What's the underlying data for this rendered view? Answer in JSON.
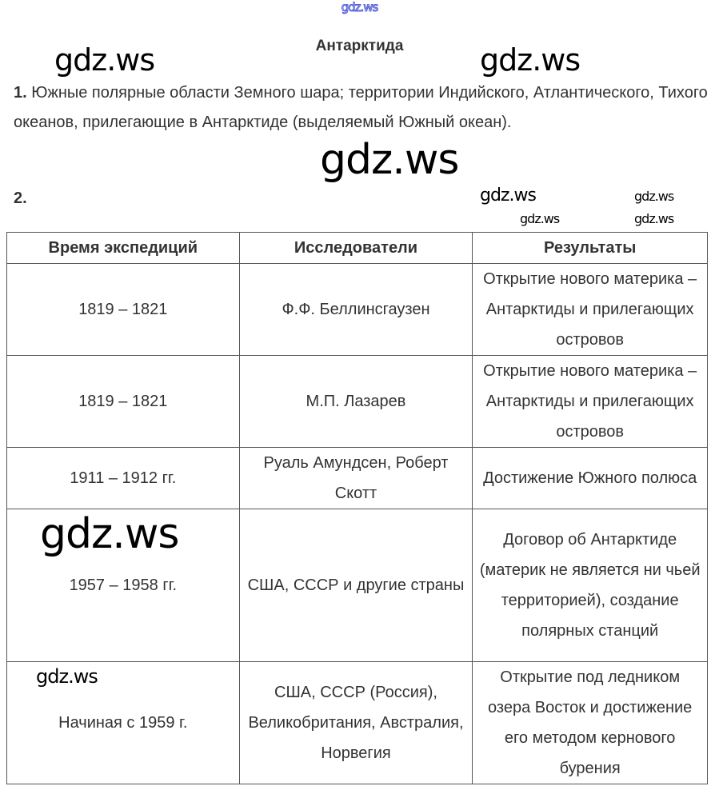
{
  "watermark": "gdz.ws",
  "title": "Антарктида",
  "q1": {
    "number": "1.",
    "text": "Южные полярные области Земного шара; территории Индийского, Атлантического, Тихого океанов, прилегающие в Антарктиде (выделяемый Южный океан)."
  },
  "q2": {
    "number": "2."
  },
  "table": {
    "headers": [
      "Время экспедиций",
      "Исследователи",
      "Результаты"
    ],
    "rows": [
      [
        "1819 – 1821",
        "Ф.Ф. Беллинсгаузен",
        "Открытие нового материка – Антарктиды и прилегающих островов"
      ],
      [
        "1819 – 1821",
        "М.П. Лазарев",
        "Открытие нового материка – Антарктиды и прилегающих островов"
      ],
      [
        "1911 – 1912 гг.",
        "Руаль Амундсен, Роберт Скотт",
        "Достижение Южного полюса"
      ],
      [
        "1957 – 1958 гг.",
        "США, СССР и другие страны",
        "Договор об Антарктиде (материк не является ни чьей территорией), создание полярных станций"
      ],
      [
        "Начиная с 1959 г.",
        "США, СССР (Россия), Великобритания, Австралия, Норвегия",
        "Открытие под ледником озера Восток и достижение его методом кернового бурения"
      ]
    ]
  }
}
